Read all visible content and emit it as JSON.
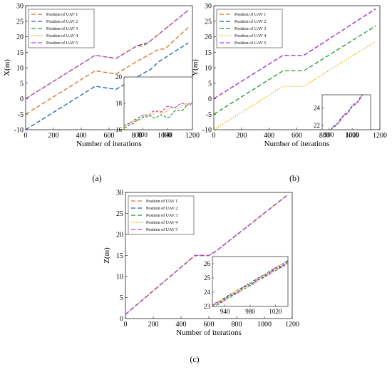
{
  "figure_labels": [
    "(a)",
    "(b)",
    "(c)"
  ],
  "colors": {
    "UAV 1": "#d9701c",
    "UAV 2": "#1f5fb8",
    "UAV 3": "#1e9a2e",
    "UAV 4": "#f2a300",
    "UAV 5": "#b63fd6"
  },
  "chart_data": [
    {
      "type": "line",
      "panel": "(a)",
      "xlabel": "Number of iterations",
      "ylabel": "X(m)",
      "xlim": [
        0,
        1200
      ],
      "ylim": [
        -10,
        30
      ],
      "xticks": [
        0,
        200,
        400,
        600,
        800,
        1000,
        1200
      ],
      "yticks": [
        -10,
        -5,
        0,
        5,
        10,
        15,
        20,
        25,
        30
      ],
      "grid": false,
      "legend": "top-left",
      "series": [
        {
          "name": "Position of UAV 1",
          "x": [
            0,
            500,
            650,
            800,
            860,
            960,
            1000,
            1170
          ],
          "y": [
            -5,
            9,
            8,
            12,
            13.5,
            16,
            16,
            23
          ]
        },
        {
          "name": "Position of UAV 2",
          "x": [
            0,
            500,
            650,
            800,
            900,
            960,
            1170
          ],
          "y": [
            -10,
            4,
            3,
            7,
            9.5,
            12,
            18
          ]
        },
        {
          "name": "Position of UAV 3",
          "x": [
            0,
            500,
            650,
            800,
            840,
            880,
            1170
          ],
          "y": [
            0,
            14,
            13,
            17,
            17,
            18,
            28.5
          ]
        },
        {
          "name": "Position of UAV 4",
          "x": [
            0,
            500,
            650,
            800,
            840,
            880,
            1170
          ],
          "y": [
            0,
            14,
            13,
            17,
            17.5,
            18,
            28.5
          ]
        },
        {
          "name": "Position of UAV 5",
          "x": [
            0,
            500,
            650,
            800,
            850,
            880,
            1170
          ],
          "y": [
            0,
            14,
            13,
            17,
            17.8,
            18,
            28.5
          ]
        }
      ],
      "inset": {
        "xlim": [
          770,
          880
        ],
        "ylim": [
          16,
          20
        ],
        "xticks": [
          800,
          840
        ],
        "yticks": [
          16,
          18,
          20
        ]
      }
    },
    {
      "type": "line",
      "panel": "(b)",
      "xlabel": "Number of iterations",
      "ylabel": "Y(m)",
      "xlim": [
        0,
        1200
      ],
      "ylim": [
        -10,
        30
      ],
      "xticks": [
        0,
        200,
        400,
        600,
        800,
        1000,
        1200
      ],
      "yticks": [
        -10,
        -5,
        0,
        5,
        10,
        15,
        20,
        25,
        30
      ],
      "grid": false,
      "legend": "top-left",
      "series": [
        {
          "name": "Position of UAV 1",
          "x": [
            0,
            500,
            650,
            1170
          ],
          "y": [
            0,
            14,
            14,
            29
          ]
        },
        {
          "name": "Position of UAV 2",
          "x": [
            0,
            500,
            650,
            1170
          ],
          "y": [
            0,
            14,
            14,
            29
          ]
        },
        {
          "name": "Position of UAV 3",
          "x": [
            0,
            500,
            650,
            1170
          ],
          "y": [
            -5,
            9,
            9,
            23.5
          ]
        },
        {
          "name": "Position of UAV 4",
          "x": [
            0,
            500,
            650,
            1170
          ],
          "y": [
            -10,
            4,
            4,
            18.5
          ]
        },
        {
          "name": "Position of UAV 5",
          "x": [
            0,
            500,
            650,
            1170
          ],
          "y": [
            0,
            14,
            14,
            29
          ]
        }
      ],
      "inset": {
        "xlim": [
          870,
          1080
        ],
        "ylim": [
          21.5,
          25.5
        ],
        "xticks": [
          900,
          1000
        ],
        "yticks": [
          22,
          24
        ]
      }
    },
    {
      "type": "line",
      "panel": "(c)",
      "xlabel": "Number of iterations",
      "ylabel": "Z(m)",
      "xlim": [
        0,
        1200
      ],
      "ylim": [
        0,
        30
      ],
      "xticks": [
        0,
        200,
        400,
        600,
        800,
        1000,
        1200
      ],
      "yticks": [
        0,
        5,
        10,
        15,
        20,
        25,
        30
      ],
      "grid": false,
      "legend": "top-left",
      "series": [
        {
          "name": "Position of UAV 1",
          "x": [
            0,
            500,
            600,
            650,
            1170
          ],
          "y": [
            1,
            15,
            15,
            16,
            29.5
          ]
        },
        {
          "name": "Position of UAV 2",
          "x": [
            0,
            500,
            600,
            650,
            1170
          ],
          "y": [
            1,
            15,
            15,
            16,
            29.5
          ]
        },
        {
          "name": "Position of UAV 3",
          "x": [
            0,
            500,
            600,
            650,
            1170
          ],
          "y": [
            1,
            15,
            15,
            16,
            29.5
          ]
        },
        {
          "name": "Position of UAV 4",
          "x": [
            0,
            500,
            600,
            650,
            1170
          ],
          "y": [
            1,
            15,
            15,
            16,
            29.5
          ]
        },
        {
          "name": "Position of UAV 5",
          "x": [
            0,
            500,
            600,
            650,
            1170
          ],
          "y": [
            1,
            15,
            15,
            16,
            29.5
          ]
        }
      ],
      "inset": {
        "xlim": [
          920,
          1040
        ],
        "ylim": [
          23,
          26.5
        ],
        "xticks": [
          940,
          980,
          1020
        ],
        "yticks": [
          23,
          24,
          25,
          26
        ]
      }
    }
  ]
}
